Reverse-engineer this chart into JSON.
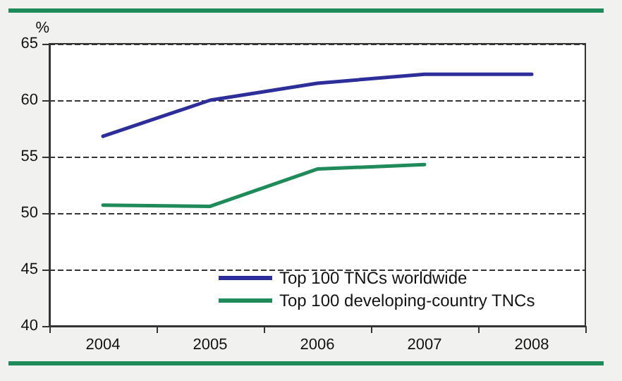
{
  "chart_data": {
    "type": "line",
    "ylabel": "%",
    "categories": [
      "2004",
      "2005",
      "2006",
      "2007",
      "2008"
    ],
    "series": [
      {
        "name": "Top 100 TNCs worldwide",
        "color": "#2e2e9a",
        "values": [
          56.8,
          60.0,
          61.5,
          62.3,
          62.3
        ]
      },
      {
        "name": "Top 100 developing-country TNCs",
        "color": "#1f8a5a",
        "values": [
          50.7,
          50.6,
          53.9,
          54.3,
          null
        ]
      }
    ],
    "ylim": [
      40,
      65
    ],
    "yticks": [
      40,
      45,
      50,
      55,
      60,
      65
    ],
    "grid": "y",
    "legend": "bottom right",
    "marker": "none",
    "line_style": "solid"
  }
}
